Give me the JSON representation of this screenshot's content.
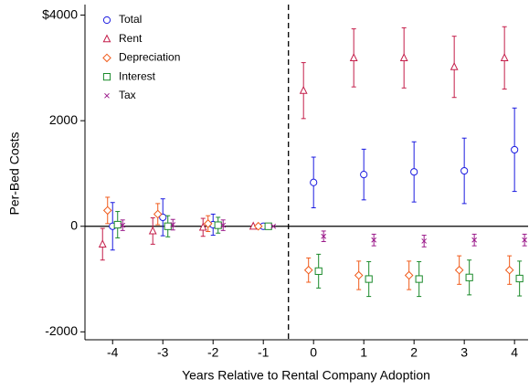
{
  "chart_data": {
    "type": "errorbar",
    "x_label": "Years Relative to Rental Company Adoption",
    "y_label": "Per-Bed Costs",
    "x": [
      -4,
      -3,
      -2,
      -1,
      0,
      1,
      2,
      3,
      4
    ],
    "xlim": [
      -4.55,
      4.27
    ],
    "ylim": [
      -2150,
      4200
    ],
    "xticks": [
      -4,
      -3,
      -2,
      -1,
      0,
      1,
      2,
      3,
      4
    ],
    "yticks": [
      {
        "value": 4000,
        "label": "$4000"
      },
      2000,
      0,
      -2000
    ],
    "reference_lines": {
      "y": 0,
      "x": -0.5
    },
    "legend": "top-left",
    "series": [
      {
        "name": "Total",
        "color": "#1c1ce0",
        "marker": "circle",
        "values": [
          0,
          170,
          30,
          0,
          830,
          980,
          1030,
          1050,
          1450
        ],
        "errors": [
          450,
          350,
          200,
          null,
          480,
          480,
          570,
          620,
          790
        ]
      },
      {
        "name": "Rent",
        "color": "#c41e4a",
        "marker": "triangle",
        "values": [
          -340,
          -90,
          -20,
          0,
          2570,
          3190,
          3190,
          3020,
          3190
        ],
        "errors": [
          300,
          250,
          170,
          null,
          530,
          550,
          570,
          580,
          590
        ]
      },
      {
        "name": "Depreciation",
        "color": "#f05a1a",
        "marker": "diamond",
        "values": [
          300,
          230,
          50,
          0,
          -830,
          -930,
          -930,
          -830,
          -830
        ],
        "errors": [
          250,
          200,
          150,
          null,
          230,
          270,
          270,
          270,
          270
        ]
      },
      {
        "name": "Interest",
        "color": "#1a8a2a",
        "marker": "square",
        "values": [
          30,
          0,
          20,
          0,
          -850,
          -1000,
          -1000,
          -970,
          -990
        ],
        "errors": [
          250,
          200,
          150,
          null,
          320,
          330,
          330,
          330,
          330
        ]
      },
      {
        "name": "Tax",
        "color": "#9b1a8a",
        "marker": "x",
        "values": [
          20,
          30,
          20,
          0,
          -190,
          -260,
          -280,
          -260,
          -260
        ],
        "errors": [
          100,
          100,
          100,
          null,
          100,
          110,
          110,
          110,
          110
        ]
      }
    ]
  }
}
